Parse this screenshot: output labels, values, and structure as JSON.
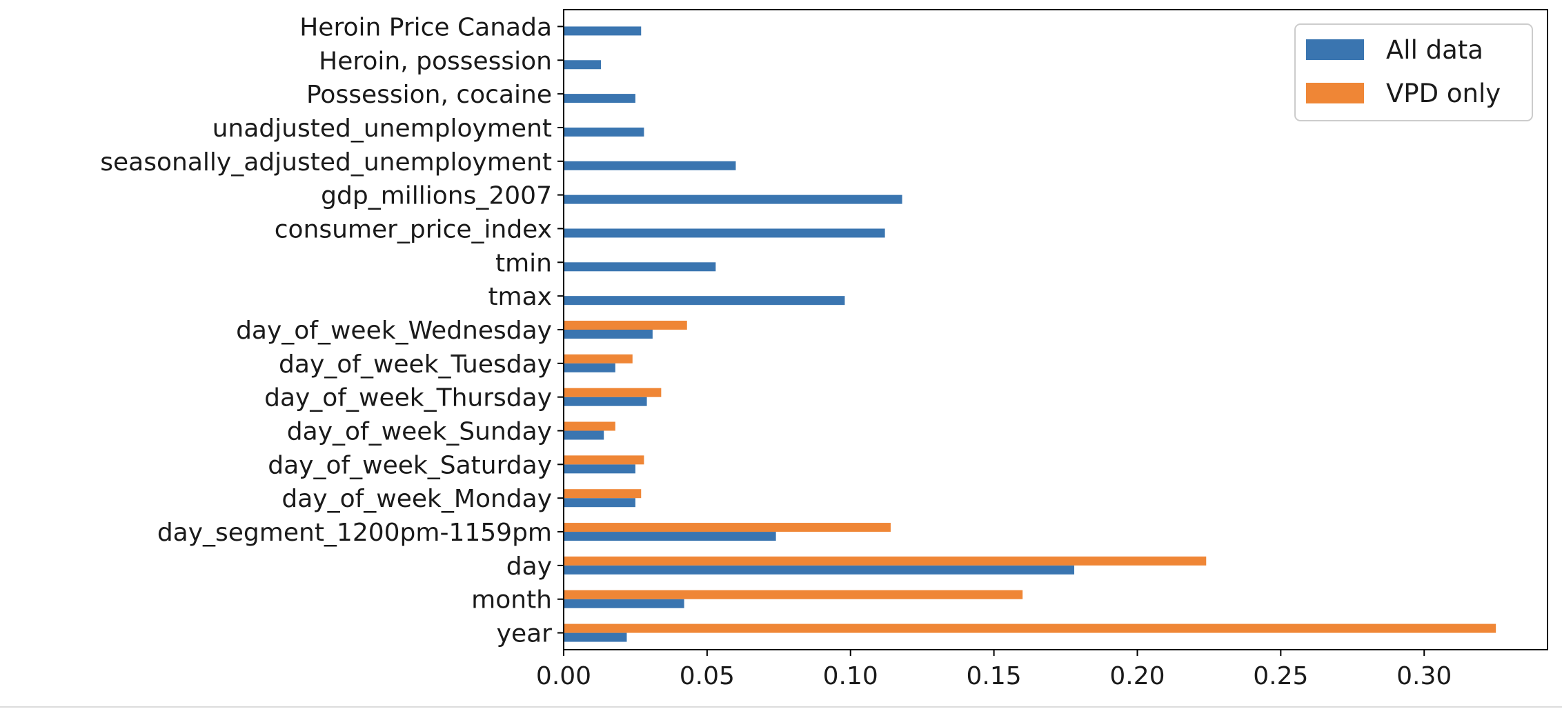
{
  "chart_data": {
    "type": "bar",
    "orientation": "horizontal",
    "title": "",
    "xlabel": "",
    "ylabel": "",
    "xlim": [
      0.0,
      0.343
    ],
    "xticks": [
      "0.00",
      "0.05",
      "0.10",
      "0.15",
      "0.20",
      "0.25",
      "0.30"
    ],
    "grid": false,
    "legend_position": "top-right",
    "categories": [
      "year",
      "month",
      "day",
      "day_segment_1200pm-1159pm",
      "day_of_week_Monday",
      "day_of_week_Saturday",
      "day_of_week_Sunday",
      "day_of_week_Thursday",
      "day_of_week_Tuesday",
      "day_of_week_Wednesday",
      "tmax",
      "tmin",
      "consumer_price_index",
      "gdp_millions_2007",
      "seasonally_adjusted_unemployment",
      "unadjusted_unemployment",
      "Possession, cocaine",
      "Heroin, possession",
      "Heroin Price Canada"
    ],
    "series": [
      {
        "name": "All data",
        "color": "#3a75b0",
        "values": [
          0.022,
          0.042,
          0.178,
          0.074,
          0.025,
          0.025,
          0.014,
          0.029,
          0.018,
          0.031,
          0.098,
          0.053,
          0.112,
          0.118,
          0.06,
          0.028,
          0.025,
          0.013,
          0.027
        ]
      },
      {
        "name": "VPD only",
        "color": "#ef8636",
        "values": [
          0.325,
          0.16,
          0.224,
          0.114,
          0.027,
          0.028,
          0.018,
          0.034,
          0.024,
          0.043,
          null,
          null,
          null,
          null,
          null,
          null,
          null,
          null,
          null
        ]
      }
    ]
  }
}
